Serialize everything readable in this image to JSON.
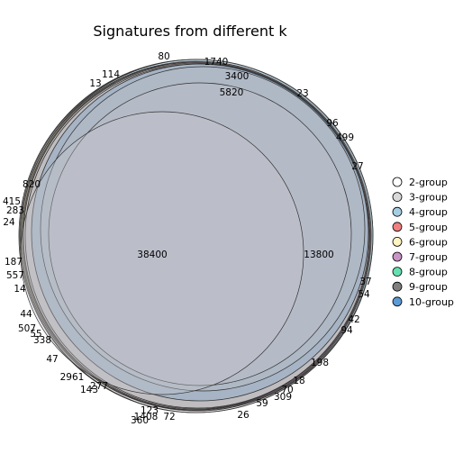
{
  "title": "Signatures from different k",
  "legend": [
    {
      "label": "2-group",
      "color": "#ffffff"
    },
    {
      "label": "3-group",
      "color": "#d9d9d9"
    },
    {
      "label": "4-group",
      "color": "#a6cee3"
    },
    {
      "label": "5-group",
      "color": "#f08080"
    },
    {
      "label": "6-group",
      "color": "#fff5c0"
    },
    {
      "label": "7-group",
      "color": "#c994c7"
    },
    {
      "label": "8-group",
      "color": "#66e0b0"
    },
    {
      "label": "9-group",
      "color": "#7f7f7f"
    },
    {
      "label": "10-group",
      "color": "#5b9bd5"
    }
  ],
  "region_labels": [
    "80",
    "1740",
    "3400",
    "5820",
    "114",
    "13",
    "23",
    "96",
    "499",
    "27",
    "820",
    "415",
    "283",
    "24",
    "187",
    "557",
    "14",
    "38400",
    "13800",
    "37",
    "54",
    "42",
    "94",
    "44",
    "507",
    "55",
    "338",
    "47",
    "2961",
    "277",
    "143",
    "198",
    "18",
    "70",
    "309",
    "59",
    "26",
    "123",
    "1408",
    "72",
    "360"
  ]
}
